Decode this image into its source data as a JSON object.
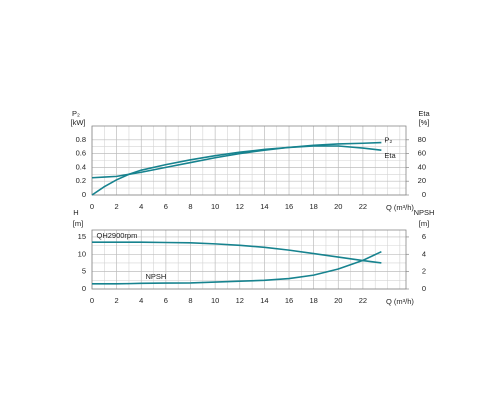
{
  "chart_data": [
    {
      "type": "line",
      "ylabel": "P₂",
      "yunit": "[kW]",
      "y2label": "Eta",
      "y2unit": "[%]",
      "xlabel": "Q (m³/h)",
      "x": [
        0,
        1,
        2,
        3,
        4,
        6,
        8,
        10,
        12,
        14,
        16,
        18,
        20,
        22,
        23.5
      ],
      "xlim": [
        0,
        25.5
      ],
      "xticks": [
        0,
        2,
        4,
        6,
        8,
        10,
        12,
        14,
        16,
        18,
        20,
        22
      ],
      "ylim": [
        0,
        1
      ],
      "yticks": [
        0,
        0.2,
        0.4,
        0.6,
        0.8
      ],
      "y2lim": [
        0,
        100
      ],
      "y2ticks": [
        0,
        20,
        40,
        60,
        80
      ],
      "grid": true,
      "series": [
        {
          "name": "P₂",
          "color": "#17838f",
          "values": [
            0.25,
            0.26,
            0.27,
            0.3,
            0.33,
            0.4,
            0.47,
            0.54,
            0.6,
            0.65,
            0.69,
            0.72,
            0.74,
            0.75,
            0.76
          ]
        },
        {
          "name": "Eta",
          "color": "#17838f",
          "axis": "y2",
          "values": [
            0,
            12,
            22,
            30,
            36,
            44,
            51,
            57,
            62,
            66,
            69,
            71,
            71,
            68,
            65
          ]
        }
      ]
    },
    {
      "type": "line",
      "ylabel": "H",
      "yunit": "[m]",
      "y2label": "NPSH",
      "y2unit": "[m]",
      "xlabel": "Q (m³/h)",
      "x": [
        0,
        1,
        2,
        3,
        4,
        6,
        8,
        10,
        12,
        14,
        16,
        18,
        20,
        22,
        23.5
      ],
      "xlim": [
        0,
        25.5
      ],
      "xticks": [
        0,
        2,
        4,
        6,
        8,
        10,
        12,
        14,
        16,
        18,
        20,
        22
      ],
      "ylim": [
        0,
        17
      ],
      "yticks": [
        0,
        5,
        10,
        15
      ],
      "y2lim": [
        0,
        6.8
      ],
      "y2ticks": [
        0,
        2,
        4,
        6
      ],
      "grid": true,
      "series": [
        {
          "name": "QH2900rpm",
          "color": "#17838f",
          "values": [
            13.5,
            13.5,
            13.5,
            13.5,
            13.5,
            13.4,
            13.3,
            13,
            12.6,
            12,
            11.2,
            10.2,
            9.2,
            8.2,
            7.5
          ]
        },
        {
          "name": "NPSH",
          "color": "#17838f",
          "axis": "y2",
          "values": [
            0.6,
            0.6,
            0.6,
            0.62,
            0.65,
            0.68,
            0.7,
            0.8,
            0.9,
            1.0,
            1.2,
            1.6,
            2.3,
            3.3,
            4.3
          ]
        }
      ]
    }
  ]
}
